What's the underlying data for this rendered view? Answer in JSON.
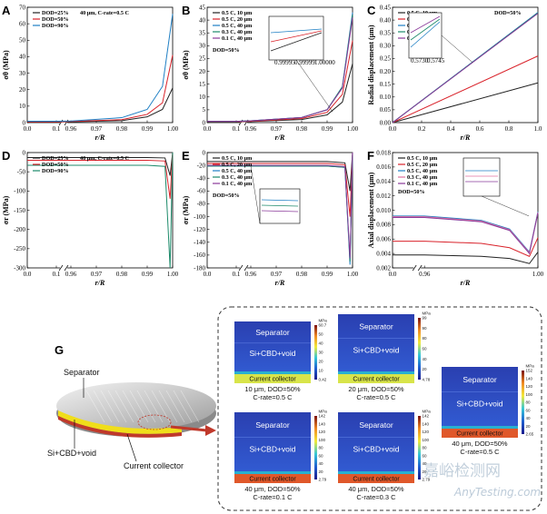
{
  "colors": {
    "c_black": "#222222",
    "c_red": "#d9222a",
    "c_blue": "#1f7fc4",
    "c_green": "#1c8a6a",
    "c_purple": "#8a3a9a",
    "c_pink": "#e070a0",
    "c_gray": "#777777"
  },
  "watermark": {
    "line1": "嘉峪检测网",
    "line2": "AnyTesting.com"
  },
  "chart_data": [
    {
      "id": "A",
      "letter": "A",
      "type": "line",
      "ylabel": "σθ (MPa)",
      "xlabel": "r/R",
      "x_ticks": [
        "0.0",
        "0.1",
        "0.96",
        "0.97",
        "0.98",
        "0.99",
        "1.00"
      ],
      "y_ticks": [
        "0",
        "10",
        "20",
        "30",
        "40",
        "50",
        "60",
        "70"
      ],
      "ylim": [
        0,
        70
      ],
      "legend": [
        "DOD=25%",
        "DOD=50%",
        "DOD=90%"
      ],
      "legend_note": "40 μm, C-rate=0.5 C",
      "series": [
        {
          "name": "DOD=25%",
          "color": "c_black",
          "points": [
            [
              0.0,
              0.4
            ],
            [
              0.1,
              0.4
            ],
            [
              0.96,
              0.5
            ],
            [
              0.98,
              1.2
            ],
            [
              0.99,
              3.5
            ],
            [
              0.996,
              8
            ],
            [
              1.0,
              21
            ]
          ]
        },
        {
          "name": "DOD=50%",
          "color": "c_red",
          "points": [
            [
              0.0,
              0.5
            ],
            [
              0.1,
              0.5
            ],
            [
              0.96,
              0.7
            ],
            [
              0.98,
              1.8
            ],
            [
              0.99,
              5
            ],
            [
              0.996,
              12
            ],
            [
              1.0,
              41
            ]
          ]
        },
        {
          "name": "DOD=90%",
          "color": "c_blue",
          "points": [
            [
              0.0,
              0.8
            ],
            [
              0.1,
              0.8
            ],
            [
              0.96,
              1.0
            ],
            [
              0.98,
              3
            ],
            [
              0.99,
              8
            ],
            [
              0.996,
              22
            ],
            [
              1.0,
              66
            ]
          ]
        }
      ]
    },
    {
      "id": "B",
      "letter": "B",
      "type": "line",
      "ylabel": "σθ (MPa)",
      "xlabel": "r/R",
      "x_ticks": [
        "0.0",
        "0.1",
        "0.96",
        "0.97",
        "0.98",
        "0.99",
        "1.00"
      ],
      "y_ticks": [
        "0",
        "5",
        "10",
        "15",
        "20",
        "25",
        "30",
        "35",
        "40",
        "45"
      ],
      "ylim": [
        0,
        45
      ],
      "legend": [
        "0.5 C, 10 μm",
        "0.5 C, 20 μm",
        "0.5 C, 40 μm",
        "0.3 C, 40 μm",
        "0.1 C, 40 μm"
      ],
      "legend_note": "DOD=50%",
      "inset_ticks": [
        "0.99995",
        "0.99999",
        "1.00000"
      ],
      "series": [
        {
          "name": "0.5 C, 10 μm",
          "color": "c_black",
          "points": [
            [
              0.0,
              0.3
            ],
            [
              0.1,
              0.3
            ],
            [
              0.96,
              0.4
            ],
            [
              0.98,
              1.2
            ],
            [
              0.99,
              3
            ],
            [
              0.996,
              8
            ],
            [
              1.0,
              23
            ]
          ]
        },
        {
          "name": "0.5 C, 20 μm",
          "color": "c_red",
          "points": [
            [
              0.0,
              0.4
            ],
            [
              0.1,
              0.4
            ],
            [
              0.96,
              0.5
            ],
            [
              0.98,
              1.6
            ],
            [
              0.99,
              4
            ],
            [
              0.996,
              11
            ],
            [
              1.0,
              32
            ]
          ]
        },
        {
          "name": "0.5 C, 40 μm",
          "color": "c_blue",
          "points": [
            [
              0.0,
              0.5
            ],
            [
              0.1,
              0.5
            ],
            [
              0.96,
              0.7
            ],
            [
              0.98,
              2
            ],
            [
              0.99,
              5
            ],
            [
              0.996,
              14
            ],
            [
              1.0,
              43
            ]
          ]
        },
        {
          "name": "0.3 C, 40 μm",
          "color": "c_green",
          "points": [
            [
              0.0,
              0.5
            ],
            [
              0.1,
              0.5
            ],
            [
              0.96,
              0.7
            ],
            [
              0.98,
              2
            ],
            [
              0.99,
              5
            ],
            [
              0.996,
              14
            ],
            [
              1.0,
              42
            ]
          ]
        },
        {
          "name": "0.1 C, 40 μm",
          "color": "c_purple",
          "points": [
            [
              0.0,
              0.5
            ],
            [
              0.1,
              0.5
            ],
            [
              0.96,
              0.7
            ],
            [
              0.98,
              2
            ],
            [
              0.99,
              5
            ],
            [
              0.996,
              13.5
            ],
            [
              1.0,
              41
            ]
          ]
        }
      ]
    },
    {
      "id": "C",
      "letter": "C",
      "type": "line",
      "ylabel": "Radial displacement (μm)",
      "xlabel": "r/R",
      "x_ticks": [
        "0.0",
        "0.2",
        "0.4",
        "0.6",
        "0.8",
        "1.0"
      ],
      "y_ticks": [
        "0.00",
        "0.05",
        "0.10",
        "0.15",
        "0.20",
        "0.25",
        "0.30",
        "0.35",
        "0.40",
        "0.45"
      ],
      "ylim": [
        0,
        0.45
      ],
      "legend": [
        "0.5 C, 10 μm",
        "0.5 C, 20 μm",
        "0.5 C, 40 μm",
        "0.3 C, 40 μm",
        "0.1 C, 40 μm"
      ],
      "legend_note": "DOD=50%",
      "inset_ticks": [
        "0.5730",
        "0.5745"
      ],
      "series": [
        {
          "name": "0.5 C, 10 μm",
          "color": "c_black",
          "points": [
            [
              0,
              0
            ],
            [
              1.0,
              0.155
            ]
          ]
        },
        {
          "name": "0.5 C, 20 μm",
          "color": "c_red",
          "points": [
            [
              0,
              0
            ],
            [
              1.0,
              0.26
            ]
          ]
        },
        {
          "name": "0.5 C, 40 μm",
          "color": "c_blue",
          "points": [
            [
              0,
              0
            ],
            [
              1.0,
              0.43
            ]
          ]
        },
        {
          "name": "0.3 C, 40 μm",
          "color": "c_green",
          "points": [
            [
              0,
              0
            ],
            [
              1.0,
              0.428
            ]
          ]
        },
        {
          "name": "0.1 C, 40 μm",
          "color": "c_purple",
          "points": [
            [
              0,
              0
            ],
            [
              1.0,
              0.426
            ]
          ]
        }
      ]
    },
    {
      "id": "D",
      "letter": "D",
      "type": "line",
      "ylabel": "σr (MPa)",
      "xlabel": "r/R",
      "x_ticks": [
        "0.0",
        "0.1",
        "0.96",
        "0.97",
        "0.98",
        "0.99",
        "1.00"
      ],
      "y_ticks": [
        "0",
        "-50",
        "-100",
        "-150",
        "-200",
        "-250",
        "-300"
      ],
      "ylim": [
        -300,
        0
      ],
      "legend": [
        "DOD=25%",
        "DOD=50%",
        "DOD=90%"
      ],
      "legend_note": "40 μm, C-rate=0.5 C",
      "series": [
        {
          "name": "DOD=25%",
          "color": "c_black",
          "points": [
            [
              0.0,
              -13
            ],
            [
              0.1,
              -13
            ],
            [
              0.96,
              -13
            ],
            [
              0.99,
              -13
            ],
            [
              0.997,
              -14
            ],
            [
              0.999,
              -60
            ],
            [
              1.0,
              0
            ]
          ]
        },
        {
          "name": "DOD=50%",
          "color": "c_red",
          "points": [
            [
              0.0,
              -20
            ],
            [
              0.1,
              -20
            ],
            [
              0.96,
              -20
            ],
            [
              0.99,
              -20
            ],
            [
              0.997,
              -22
            ],
            [
              0.999,
              -120
            ],
            [
              1.0,
              0
            ]
          ]
        },
        {
          "name": "DOD=90%",
          "color": "c_green",
          "points": [
            [
              0.0,
              -33
            ],
            [
              0.1,
              -33
            ],
            [
              0.96,
              -33
            ],
            [
              0.99,
              -33
            ],
            [
              0.997,
              -36
            ],
            [
              0.999,
              -300
            ],
            [
              1.0,
              0
            ]
          ]
        }
      ]
    },
    {
      "id": "E",
      "letter": "E",
      "type": "line",
      "ylabel": "σr (MPa)",
      "xlabel": "r/R",
      "x_ticks": [
        "0.0",
        "0.1",
        "0.96",
        "0.97",
        "0.98",
        "0.99",
        "1.00"
      ],
      "y_ticks": [
        "0",
        "-20",
        "-40",
        "-60",
        "-80",
        "-100",
        "-120",
        "-140",
        "-160",
        "-180"
      ],
      "ylim": [
        -180,
        0
      ],
      "legend": [
        "0.5 C, 10 μm",
        "0.5 C, 20 μm",
        "0.5 C, 40 μm",
        "0.3 C, 40 μm",
        "0.1 C, 40 μm"
      ],
      "legend_note": "DOD=50%",
      "series": [
        {
          "name": "0.5 C, 10 μm",
          "color": "c_black",
          "points": [
            [
              0.0,
              -14
            ],
            [
              0.1,
              -14
            ],
            [
              0.96,
              -14
            ],
            [
              0.99,
              -14
            ],
            [
              0.997,
              -16
            ],
            [
              0.999,
              -60
            ],
            [
              1.0,
              0
            ]
          ]
        },
        {
          "name": "0.5 C, 20 μm",
          "color": "c_red",
          "points": [
            [
              0.0,
              -17
            ],
            [
              0.1,
              -17
            ],
            [
              0.96,
              -17
            ],
            [
              0.99,
              -17
            ],
            [
              0.997,
              -19
            ],
            [
              0.999,
              -100
            ],
            [
              1.0,
              0
            ]
          ]
        },
        {
          "name": "0.5 C, 40 μm",
          "color": "c_blue",
          "points": [
            [
              0.0,
              -21
            ],
            [
              0.1,
              -21
            ],
            [
              0.96,
              -21
            ],
            [
              0.99,
              -21
            ],
            [
              0.997,
              -23
            ],
            [
              0.999,
              -175
            ],
            [
              1.0,
              0
            ]
          ]
        },
        {
          "name": "0.3 C, 40 μm",
          "color": "c_green",
          "points": [
            [
              0.0,
              -21
            ],
            [
              0.1,
              -21
            ],
            [
              0.96,
              -21
            ],
            [
              0.99,
              -21
            ],
            [
              0.997,
              -23
            ],
            [
              0.999,
              -170
            ],
            [
              1.0,
              0
            ]
          ]
        },
        {
          "name": "0.1 C, 40 μm",
          "color": "c_purple",
          "points": [
            [
              0.0,
              -20
            ],
            [
              0.1,
              -20
            ],
            [
              0.96,
              -20
            ],
            [
              0.99,
              -20
            ],
            [
              0.997,
              -22
            ],
            [
              0.999,
              -165
            ],
            [
              1.0,
              0
            ]
          ]
        }
      ]
    },
    {
      "id": "F",
      "letter": "F",
      "type": "line",
      "ylabel": "Axial displacement (μm)",
      "xlabel": "r/R",
      "x_ticks": [
        "0.0",
        "0.96",
        "1.00"
      ],
      "y_ticks": [
        "0.002",
        "0.004",
        "0.006",
        "0.008",
        "0.010",
        "0.012",
        "0.014",
        "0.016",
        "0.018"
      ],
      "ylim": [
        0.002,
        0.018
      ],
      "legend": [
        "0.5 C, 10 μm",
        "0.5 C, 20 μm",
        "0.5 C, 40 μm",
        "0.3 C, 40 μm",
        "0.1 C, 40 μm"
      ],
      "legend_note": "DOD=50%",
      "series": [
        {
          "name": "0.5 C, 10 μm",
          "color": "c_black",
          "points": [
            [
              0.0,
              0.0038
            ],
            [
              0.96,
              0.0038
            ],
            [
              0.98,
              0.0036
            ],
            [
              0.99,
              0.0033
            ],
            [
              0.997,
              0.0026
            ],
            [
              1.0,
              0.0042
            ]
          ]
        },
        {
          "name": "0.5 C, 20 μm",
          "color": "c_red",
          "points": [
            [
              0.0,
              0.0057
            ],
            [
              0.96,
              0.0057
            ],
            [
              0.98,
              0.0054
            ],
            [
              0.99,
              0.0048
            ],
            [
              0.997,
              0.0036
            ],
            [
              1.0,
              0.0062
            ]
          ]
        },
        {
          "name": "0.5 C, 40 μm",
          "color": "c_blue",
          "points": [
            [
              0.0,
              0.0092
            ],
            [
              0.96,
              0.0092
            ],
            [
              0.98,
              0.0086
            ],
            [
              0.99,
              0.0074
            ],
            [
              0.997,
              0.0042
            ],
            [
              1.0,
              0.0098
            ]
          ]
        },
        {
          "name": "0.3 C, 40 μm",
          "color": "c_pink",
          "points": [
            [
              0.0,
              0.0091
            ],
            [
              0.96,
              0.0091
            ],
            [
              0.98,
              0.0085
            ],
            [
              0.99,
              0.0073
            ],
            [
              0.997,
              0.0041
            ],
            [
              1.0,
              0.0097
            ]
          ]
        },
        {
          "name": "0.1 C, 40 μm",
          "color": "c_purple",
          "points": [
            [
              0.0,
              0.009
            ],
            [
              0.96,
              0.009
            ],
            [
              0.98,
              0.0084
            ],
            [
              0.99,
              0.0072
            ],
            [
              0.997,
              0.004
            ],
            [
              1.0,
              0.0096
            ]
          ]
        }
      ]
    }
  ],
  "panel_g": {
    "letter": "G",
    "particle_labels": {
      "separator": "Separator",
      "si": "Si+CBD+void",
      "cc": "Current collector"
    },
    "sims": [
      {
        "id": "s1",
        "title": "Separator",
        "middle": "Si+CBD+void",
        "cc": "Current collector",
        "cap1": "10 μm, DOD=50%",
        "cap2": "C-rate=0.5 C",
        "cb_unit": "MPa",
        "cb_max": "60.7",
        "cb_min": "0.42",
        "cb_ticks": [
          "50",
          "40",
          "30",
          "20",
          "10"
        ]
      },
      {
        "id": "s2",
        "title": "Separator",
        "middle": "Si+CBD+void",
        "cc": "Current collector",
        "cap1": "20 μm, DOD=50%",
        "cap2": "C-rate=0.5 C",
        "cb_unit": "MPa",
        "cb_max": "99",
        "cb_min": "4.78",
        "cb_ticks": [
          "90",
          "80",
          "60",
          "40",
          "20"
        ]
      },
      {
        "id": "s3",
        "title": "Separator",
        "middle": "Si+CBD+void",
        "cc": "Current collector",
        "cap1": "40 μm, DOD=50%",
        "cap2": "C-rate=0.5 C",
        "cb_unit": "MPa",
        "cb_max": "152",
        "cb_min": "2.65",
        "cb_ticks": [
          "140",
          "120",
          "100",
          "80",
          "60",
          "40",
          "20"
        ]
      },
      {
        "id": "s4",
        "title": "Separator",
        "middle": "Si+CBD+void",
        "cc": "Current collector",
        "cap1": "40 μm, DOD=50%",
        "cap2": "C-rate=0.1 C",
        "cb_unit": "MPa",
        "cb_max": "142",
        "cb_min": "2.79",
        "cb_ticks": [
          "140",
          "120",
          "100",
          "80",
          "60",
          "40",
          "20"
        ]
      },
      {
        "id": "s5",
        "title": "Separator",
        "middle": "Si+CBD+void",
        "cc": "Current collector",
        "cap1": "40 μm, DOD=50%",
        "cap2": "C-rate=0.3 C",
        "cb_unit": "MPa",
        "cb_max": "142",
        "cb_min": "2.79",
        "cb_ticks": [
          "140",
          "120",
          "100",
          "80",
          "60",
          "40",
          "20"
        ]
      }
    ]
  }
}
